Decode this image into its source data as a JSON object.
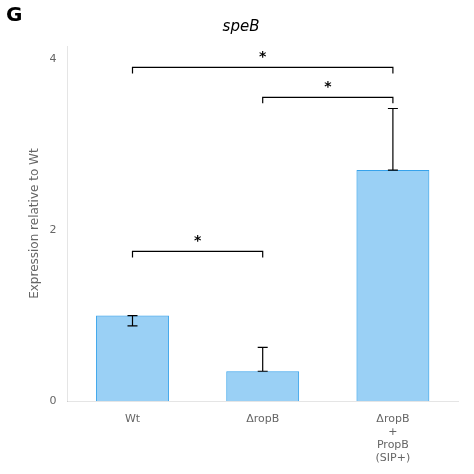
{
  "chart_data": {
    "type": "bar",
    "title": "speB",
    "panel_label": "G",
    "ylabel": "Expression relative to Wt",
    "categories": [
      "Wt",
      "ΔropB",
      "ΔropB\n+\nPropB\n(SIP+)"
    ],
    "values": [
      1.0,
      0.35,
      2.7
    ],
    "errors_down": [
      0.12,
      0.0,
      0.0
    ],
    "errors_up": [
      0.0,
      0.28,
      0.72
    ],
    "ylim": [
      0,
      4.15
    ],
    "yticks": [
      0,
      2,
      4
    ],
    "grid": false,
    "annotations": [
      {
        "from": "Wt",
        "to": "ΔropB",
        "y": 1.75,
        "label": "*"
      },
      {
        "from": "ΔropB",
        "to": "ΔropB\n+\nPropB\n(SIP+)",
        "y": 3.55,
        "label": "*"
      },
      {
        "from": "Wt",
        "to": "ΔropB\n+\nPropB\n(SIP+)",
        "y": 3.9,
        "label": "*"
      }
    ]
  }
}
